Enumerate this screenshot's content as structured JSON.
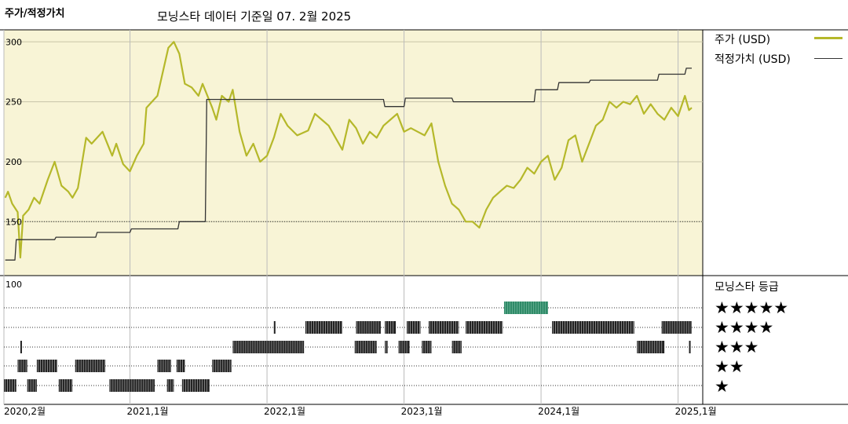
{
  "header": {
    "left_title": "주가/적정가치",
    "subtitle": "모닝스타 데이터 기준일 07. 2월 2025"
  },
  "legend": {
    "price_label": "주가 (USD)",
    "fair_value_label": "적정가치 (USD)"
  },
  "rating_panel": {
    "title": "모닝스타 등급",
    "stars": [
      "★★★★★",
      "★★★★",
      "★★★",
      "★★",
      "★"
    ],
    "top_label": "100"
  },
  "colors": {
    "price_line": "#b5b82a",
    "fair_value_line": "#333333",
    "upper_panel_bg": "#f8f4d6",
    "rating_bars": "#222222",
    "rating_five_star": "#2f8a68"
  },
  "chart_data": {
    "type": "line",
    "title": "",
    "ylim": [
      105,
      310
    ],
    "yticks": [
      "300",
      "250",
      "200",
      "150"
    ],
    "xticks": [
      "2020,2월",
      "2021,1월",
      "2022,1월",
      "2023,1월",
      "2024,1월",
      "2025,1월"
    ],
    "reference_line": 150,
    "series": [
      {
        "name": "주가 (USD)",
        "x": [
          2020.09,
          2020.11,
          2020.14,
          2020.18,
          2020.2,
          2020.22,
          2020.26,
          2020.3,
          2020.34,
          2020.4,
          2020.45,
          2020.5,
          2020.55,
          2020.58,
          2020.62,
          2020.68,
          2020.72,
          2020.8,
          2020.87,
          2020.9,
          2020.95,
          2021.0,
          2021.05,
          2021.1,
          2021.12,
          2021.16,
          2021.2,
          2021.28,
          2021.32,
          2021.36,
          2021.4,
          2021.45,
          2021.5,
          2021.53,
          2021.6,
          2021.63,
          2021.67,
          2021.72,
          2021.75,
          2021.8,
          2021.85,
          2021.9,
          2021.95,
          2022.0,
          2022.05,
          2022.1,
          2022.15,
          2022.22,
          2022.3,
          2022.35,
          2022.4,
          2022.45,
          2022.5,
          2022.55,
          2022.6,
          2022.65,
          2022.7,
          2022.75,
          2022.8,
          2022.85,
          2022.9,
          2022.95,
          2023.0,
          2023.05,
          2023.1,
          2023.15,
          2023.2,
          2023.25,
          2023.3,
          2023.35,
          2023.4,
          2023.45,
          2023.5,
          2023.55,
          2023.6,
          2023.65,
          2023.7,
          2023.75,
          2023.8,
          2023.85,
          2023.9,
          2023.95,
          2024.0,
          2024.05,
          2024.1,
          2024.15,
          2024.2,
          2024.25,
          2024.3,
          2024.35,
          2024.4,
          2024.45,
          2024.5,
          2024.55,
          2024.6,
          2024.65,
          2024.7,
          2024.75,
          2024.8,
          2024.85,
          2024.9,
          2024.95,
          2025.0,
          2025.05,
          2025.08,
          2025.1
        ],
        "values": [
          170,
          175,
          165,
          158,
          120,
          155,
          160,
          170,
          165,
          185,
          200,
          180,
          175,
          170,
          178,
          220,
          215,
          225,
          205,
          215,
          198,
          192,
          205,
          215,
          245,
          250,
          255,
          295,
          300,
          290,
          265,
          262,
          255,
          265,
          245,
          235,
          255,
          250,
          260,
          225,
          205,
          215,
          200,
          205,
          220,
          240,
          230,
          222,
          226,
          240,
          235,
          230,
          220,
          210,
          235,
          228,
          215,
          225,
          220,
          230,
          235,
          240,
          225,
          228,
          225,
          222,
          232,
          200,
          180,
          165,
          160,
          150,
          150,
          145,
          160,
          170,
          175,
          180,
          178,
          185,
          195,
          190,
          200,
          205,
          185,
          195,
          218,
          222,
          200,
          215,
          230,
          235,
          250,
          245,
          250,
          248,
          255,
          240,
          248,
          240,
          235,
          245,
          238,
          255,
          243,
          245
        ]
      },
      {
        "name": "적정가치 (USD)",
        "x": [
          2020.09,
          2020.16,
          2020.17,
          2020.45,
          2020.46,
          2020.75,
          2020.76,
          2021.0,
          2021.01,
          2021.35,
          2021.36,
          2021.55,
          2021.56,
          2022.85,
          2022.86,
          2023.0,
          2023.01,
          2023.35,
          2023.36,
          2023.95,
          2023.96,
          2024.12,
          2024.13,
          2024.35,
          2024.36,
          2024.85,
          2024.86,
          2025.05,
          2025.06,
          2025.1
        ],
        "values": [
          118,
          118,
          135,
          135,
          137,
          137,
          141,
          141,
          144,
          144,
          150,
          150,
          252,
          252,
          246,
          246,
          253,
          253,
          250,
          250,
          260,
          260,
          266,
          266,
          268,
          268,
          273,
          273,
          278,
          278
        ]
      }
    ]
  },
  "rating_history": {
    "levels": [
      5,
      4,
      3,
      2,
      1
    ],
    "segments": [
      {
        "rating": 1,
        "start": 2020.08,
        "end": 2020.17
      },
      {
        "rating": 1,
        "start": 2020.25,
        "end": 2020.32
      },
      {
        "rating": 1,
        "start": 2020.48,
        "end": 2020.58
      },
      {
        "rating": 1,
        "start": 2020.85,
        "end": 2021.18
      },
      {
        "rating": 1,
        "start": 2021.27,
        "end": 2021.32
      },
      {
        "rating": 1,
        "start": 2021.38,
        "end": 2021.58
      },
      {
        "rating": 2,
        "start": 2020.18,
        "end": 2020.25
      },
      {
        "rating": 2,
        "start": 2020.32,
        "end": 2020.47
      },
      {
        "rating": 2,
        "start": 2020.6,
        "end": 2020.82
      },
      {
        "rating": 2,
        "start": 2021.2,
        "end": 2021.3
      },
      {
        "rating": 2,
        "start": 2021.34,
        "end": 2021.4
      },
      {
        "rating": 2,
        "start": 2021.6,
        "end": 2021.74
      },
      {
        "rating": 3,
        "start": 2020.2,
        "end": 2020.21
      },
      {
        "rating": 3,
        "start": 2021.75,
        "end": 2022.27
      },
      {
        "rating": 3,
        "start": 2022.64,
        "end": 2022.8
      },
      {
        "rating": 3,
        "start": 2022.86,
        "end": 2022.88
      },
      {
        "rating": 3,
        "start": 2022.96,
        "end": 2023.04
      },
      {
        "rating": 3,
        "start": 2023.13,
        "end": 2023.2
      },
      {
        "rating": 3,
        "start": 2023.35,
        "end": 2023.42
      },
      {
        "rating": 3,
        "start": 2024.7,
        "end": 2024.9
      },
      {
        "rating": 3,
        "start": 2025.08,
        "end": 2025.09
      },
      {
        "rating": 4,
        "start": 2022.05,
        "end": 2022.06
      },
      {
        "rating": 4,
        "start": 2022.28,
        "end": 2022.55
      },
      {
        "rating": 4,
        "start": 2022.65,
        "end": 2022.83
      },
      {
        "rating": 4,
        "start": 2022.86,
        "end": 2022.94
      },
      {
        "rating": 4,
        "start": 2023.02,
        "end": 2023.12
      },
      {
        "rating": 4,
        "start": 2023.18,
        "end": 2023.4
      },
      {
        "rating": 4,
        "start": 2023.45,
        "end": 2023.72
      },
      {
        "rating": 4,
        "start": 2024.08,
        "end": 2024.68
      },
      {
        "rating": 4,
        "start": 2024.88,
        "end": 2025.1
      },
      {
        "rating": 5,
        "start": 2023.73,
        "end": 2024.05
      }
    ]
  }
}
